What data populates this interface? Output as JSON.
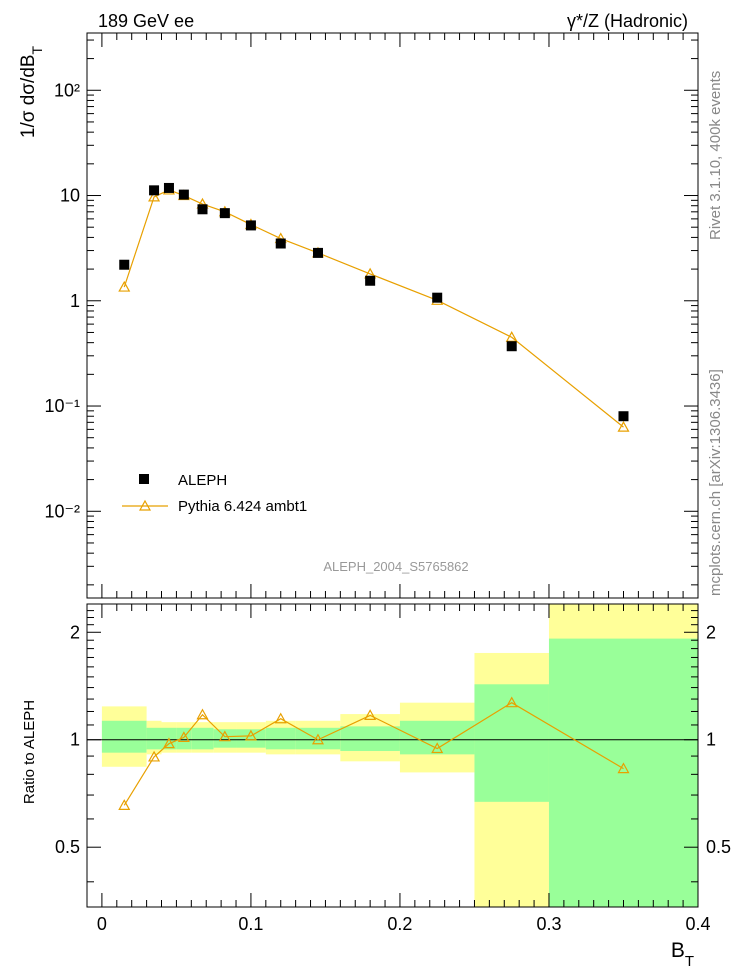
{
  "header": {
    "left": "189 GeV ee",
    "right": "γ*/Z (Hadronic)"
  },
  "side": {
    "rivet": "Rivet 3.1.10,  400k events",
    "mcplots": "mcplots.cern.ch [arXiv:1306.3436]"
  },
  "watermark": "ALEPH_2004_S5765862",
  "colors": {
    "data": "#000000",
    "mc": "#e8a000",
    "band_inner": "#99ff99",
    "band_outer": "#ffff99"
  },
  "chart_data": [
    {
      "type": "scatter",
      "ylabel": "1/σ dσ/dB_T",
      "yscale": "log",
      "ylim": [
        0.0015,
        350
      ],
      "xlim": [
        -0.01,
        0.4
      ],
      "y_ticks": [
        {
          "v": 100,
          "label": "10²"
        },
        {
          "v": 10,
          "label": "10"
        },
        {
          "v": 1,
          "label": "1"
        },
        {
          "v": 0.1,
          "label": "10⁻¹"
        },
        {
          "v": 0.01,
          "label": "10⁻²"
        }
      ],
      "legend": {
        "position": "bottom-left",
        "entries": [
          "ALEPH",
          "Pythia 6.424 ambt1"
        ]
      },
      "series": [
        {
          "name": "ALEPH",
          "marker": "square",
          "x": [
            0.015,
            0.035,
            0.045,
            0.055,
            0.0675,
            0.0825,
            0.1,
            0.12,
            0.145,
            0.18,
            0.225,
            0.275,
            0.35
          ],
          "y": [
            2.2,
            11.2,
            11.8,
            10.2,
            7.4,
            6.8,
            5.2,
            3.5,
            2.85,
            1.55,
            1.07,
            0.37,
            0.08
          ]
        },
        {
          "name": "Pythia 6.424 ambt1",
          "marker": "open-triangle",
          "x": [
            0.015,
            0.035,
            0.045,
            0.055,
            0.0675,
            0.0825,
            0.1,
            0.12,
            0.145,
            0.18,
            0.225,
            0.275,
            0.35
          ],
          "y": [
            1.35,
            9.7,
            11.3,
            10.0,
            8.3,
            7.0,
            5.3,
            3.9,
            2.85,
            1.8,
            1.01,
            0.45,
            0.063
          ]
        }
      ]
    },
    {
      "type": "line",
      "ylabel": "Ratio to ALEPH",
      "xlabel": "B_T",
      "yscale": "log",
      "ylim": [
        0.34,
        2.4
      ],
      "xlim": [
        -0.01,
        0.4
      ],
      "x_ticks": [
        0,
        0.1,
        0.2,
        0.3,
        0.4
      ],
      "x_tick_labels": [
        "0",
        "0.1",
        "0.2",
        "0.3",
        "0.4"
      ],
      "y_ticks": [
        0.5,
        1,
        2
      ],
      "y_tick_labels": [
        "0.5",
        "1",
        "2"
      ],
      "reference_line": 1,
      "bands": [
        {
          "x0": 0.0,
          "x1": 0.03,
          "inner": [
            0.92,
            1.13
          ],
          "outer": [
            0.84,
            1.24
          ]
        },
        {
          "x0": 0.03,
          "x1": 0.04,
          "inner": [
            0.94,
            1.08
          ],
          "outer": [
            0.91,
            1.13
          ]
        },
        {
          "x0": 0.04,
          "x1": 0.05,
          "inner": [
            0.94,
            1.08
          ],
          "outer": [
            0.92,
            1.12
          ]
        },
        {
          "x0": 0.05,
          "x1": 0.06,
          "inner": [
            0.94,
            1.08
          ],
          "outer": [
            0.92,
            1.12
          ]
        },
        {
          "x0": 0.06,
          "x1": 0.075,
          "inner": [
            0.94,
            1.08
          ],
          "outer": [
            0.92,
            1.12
          ]
        },
        {
          "x0": 0.075,
          "x1": 0.09,
          "inner": [
            0.95,
            1.07
          ],
          "outer": [
            0.92,
            1.12
          ]
        },
        {
          "x0": 0.09,
          "x1": 0.11,
          "inner": [
            0.95,
            1.07
          ],
          "outer": [
            0.92,
            1.12
          ]
        },
        {
          "x0": 0.11,
          "x1": 0.13,
          "inner": [
            0.94,
            1.08
          ],
          "outer": [
            0.91,
            1.13
          ]
        },
        {
          "x0": 0.13,
          "x1": 0.16,
          "inner": [
            0.94,
            1.08
          ],
          "outer": [
            0.91,
            1.13
          ]
        },
        {
          "x0": 0.16,
          "x1": 0.2,
          "inner": [
            0.93,
            1.09
          ],
          "outer": [
            0.87,
            1.18
          ]
        },
        {
          "x0": 0.2,
          "x1": 0.25,
          "inner": [
            0.91,
            1.13
          ],
          "outer": [
            0.81,
            1.27
          ]
        },
        {
          "x0": 0.25,
          "x1": 0.3,
          "inner": [
            0.67,
            1.43
          ],
          "outer": [
            0.34,
            1.75
          ]
        },
        {
          "x0": 0.3,
          "x1": 0.4,
          "inner": [
            0.34,
            1.92
          ],
          "outer": [
            0.34,
            2.4
          ]
        }
      ],
      "series": [
        {
          "name": "Pythia 6.424 ambt1",
          "marker": "open-triangle",
          "x": [
            0.015,
            0.035,
            0.045,
            0.055,
            0.0675,
            0.0825,
            0.1,
            0.12,
            0.145,
            0.18,
            0.225,
            0.275,
            0.35
          ],
          "y": [
            0.655,
            0.895,
            0.975,
            1.015,
            1.175,
            1.02,
            1.025,
            1.145,
            1.0,
            1.17,
            0.945,
            1.27,
            0.83
          ]
        }
      ]
    }
  ]
}
